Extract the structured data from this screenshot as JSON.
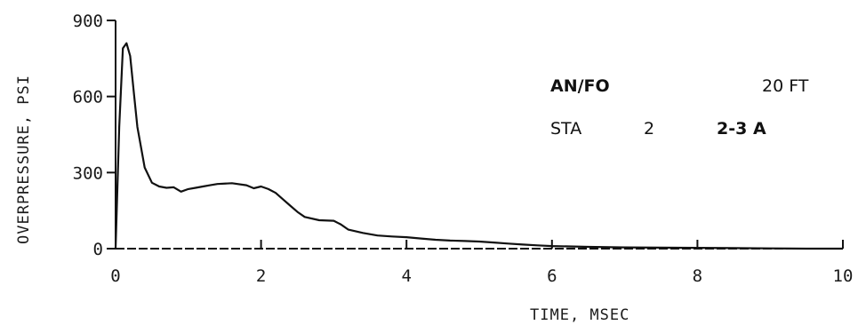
{
  "chart_data": {
    "type": "line",
    "title": "",
    "xlabel": "TIME, MSEC",
    "ylabel": "OVERPRESSURE, PSI",
    "xlim": [
      0,
      10
    ],
    "ylim": [
      0,
      900
    ],
    "x_ticks": [
      0,
      2,
      4,
      6,
      8,
      10
    ],
    "x_tick_labels": [
      "0",
      "2",
      "4",
      "6",
      "8",
      "10"
    ],
    "y_ticks": [
      0,
      300,
      600,
      900
    ],
    "y_tick_labels": [
      "0",
      "300",
      "600",
      "900"
    ],
    "grid": false,
    "legend": "none",
    "annotations": {
      "charge": "AN/FO",
      "distance": "20 FT",
      "station_label": "STA",
      "station_1": "2",
      "station_2": "2-3 A"
    },
    "series": [
      {
        "line_color": "#111111",
        "x": [
          0,
          0.05,
          0.1,
          0.15,
          0.2,
          0.25,
          0.3,
          0.4,
          0.5,
          0.6,
          0.7,
          0.8,
          0.9,
          1.0,
          1.1,
          1.2,
          1.3,
          1.4,
          1.6,
          1.8,
          1.9,
          2.0,
          2.1,
          2.2,
          2.3,
          2.4,
          2.5,
          2.6,
          2.8,
          3.0,
          3.1,
          3.2,
          3.4,
          3.6,
          3.8,
          4.0,
          4.2,
          4.4,
          4.6,
          4.8,
          5.0,
          5.2,
          5.4,
          5.6,
          5.8,
          6.0,
          6.5,
          7.0,
          7.5,
          8.0,
          8.5,
          9.0,
          9.5,
          10.0
        ],
        "y": [
          0,
          480,
          790,
          810,
          760,
          620,
          480,
          320,
          260,
          245,
          240,
          242,
          225,
          235,
          240,
          245,
          250,
          255,
          258,
          250,
          238,
          245,
          235,
          220,
          195,
          170,
          145,
          125,
          112,
          110,
          95,
          75,
          62,
          52,
          48,
          45,
          40,
          35,
          32,
          30,
          28,
          24,
          20,
          16,
          13,
          10,
          7,
          5,
          4,
          3,
          2,
          1,
          0,
          0
        ]
      }
    ]
  }
}
